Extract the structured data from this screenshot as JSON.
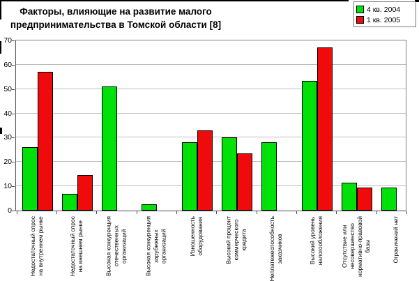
{
  "figure": {
    "kind": "embedded-excel-bar-chart"
  },
  "legend": {
    "items": [
      {
        "label": "4 кв. 2004",
        "color": "#00E10A"
      },
      {
        "label": "1 кв. 2005",
        "color": "#EF0B0B"
      }
    ]
  },
  "chart_data": {
    "type": "bar",
    "title": "Факторы, влияющие на развитие малого предпринимательства в Томской области [8]",
    "categories": [
      "Недостаточный спрос\nна внутреннем рынке",
      "Недостаточный спрос\nна внешнем рынке",
      "Высокая конкуренция\nотечественных\nорганизаций",
      "Высокая конкуренция\nзарубежных\nорганизаций",
      "Изношенность\nоборудования",
      "Высокий процент\nкоммерческого\nкредита",
      "Неплатежеспособность\nзаказчиков",
      "Высокий уровень\nналогообложения",
      "Отсутствие или\nнесовершенство\nнормативно-правовой\nбазы",
      "Ограничений нет"
    ],
    "series": [
      {
        "name": "4 кв. 2004",
        "color": "#00E10A",
        "values": [
          26,
          7,
          51,
          2.5,
          28,
          30,
          28,
          53.5,
          11.5,
          9.5
        ]
      },
      {
        "name": "1 кв. 2005",
        "color": "#EF0B0B",
        "values": [
          57,
          14.5,
          0,
          0,
          33,
          23.5,
          0,
          67,
          9.5,
          0
        ]
      }
    ],
    "ylim": [
      0,
      70
    ],
    "ytick_step": 10,
    "grid": true,
    "legend_position": "top-right"
  }
}
